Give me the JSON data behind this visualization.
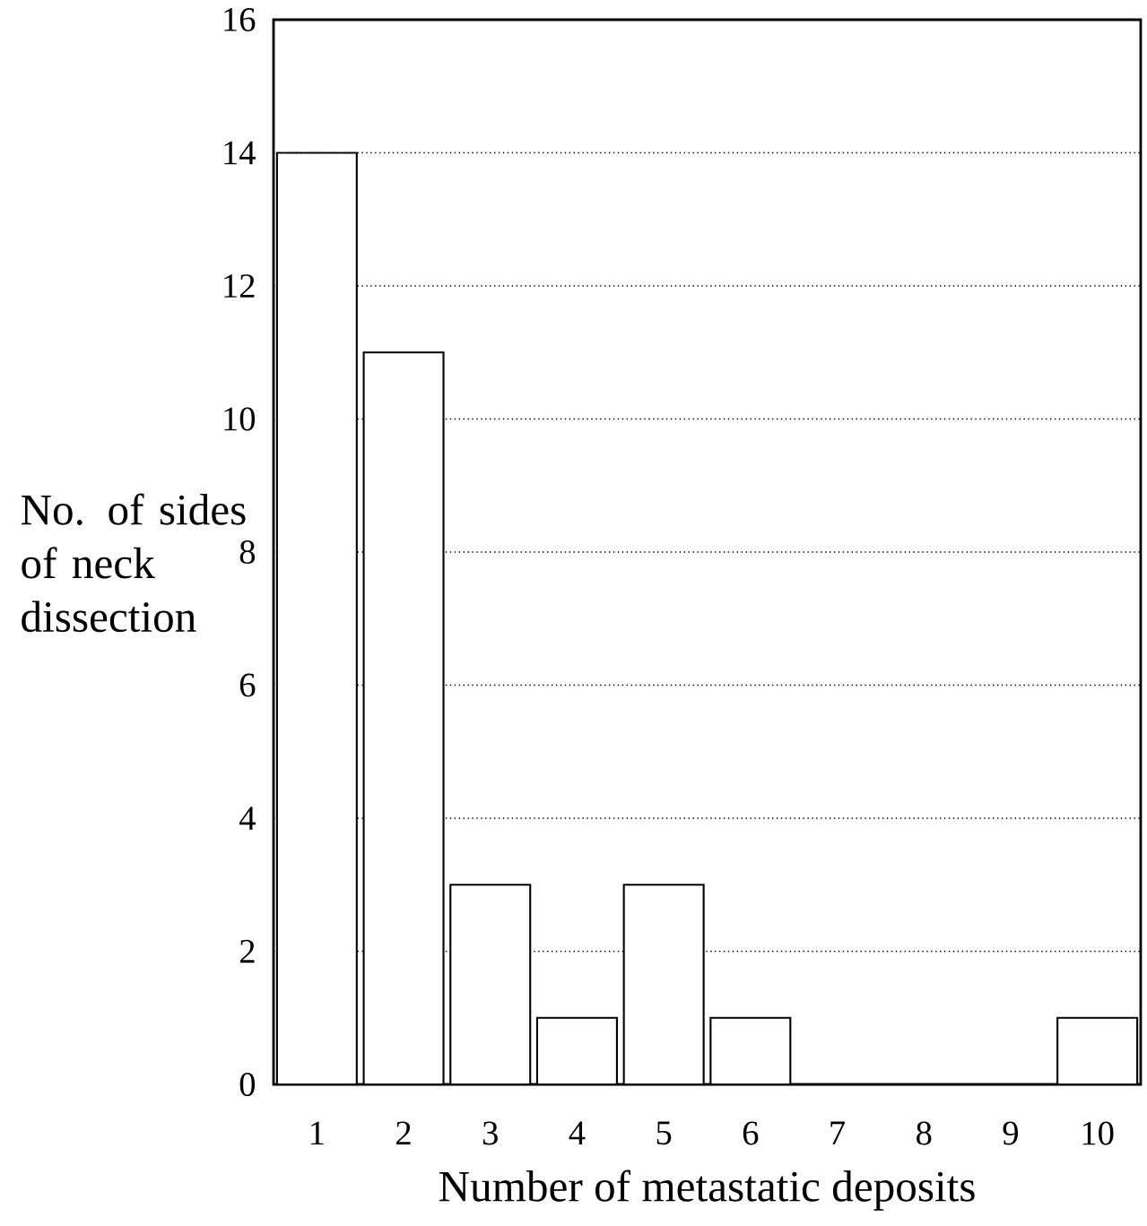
{
  "chart_data": {
    "type": "bar",
    "xlabel": "Number of metastatic deposits",
    "ylabel": "No. of sides of neck dissection",
    "categories": [
      "1",
      "2",
      "3",
      "4",
      "5",
      "6",
      "7",
      "8",
      "9",
      "10"
    ],
    "values": [
      14,
      11,
      3,
      1,
      3,
      1,
      0,
      0,
      0,
      1
    ],
    "color": "#ffffff",
    "ylim": [
      0,
      16
    ],
    "yticks": [
      0,
      2,
      4,
      6,
      8,
      10,
      12,
      14,
      16
    ],
    "grid": "y"
  }
}
